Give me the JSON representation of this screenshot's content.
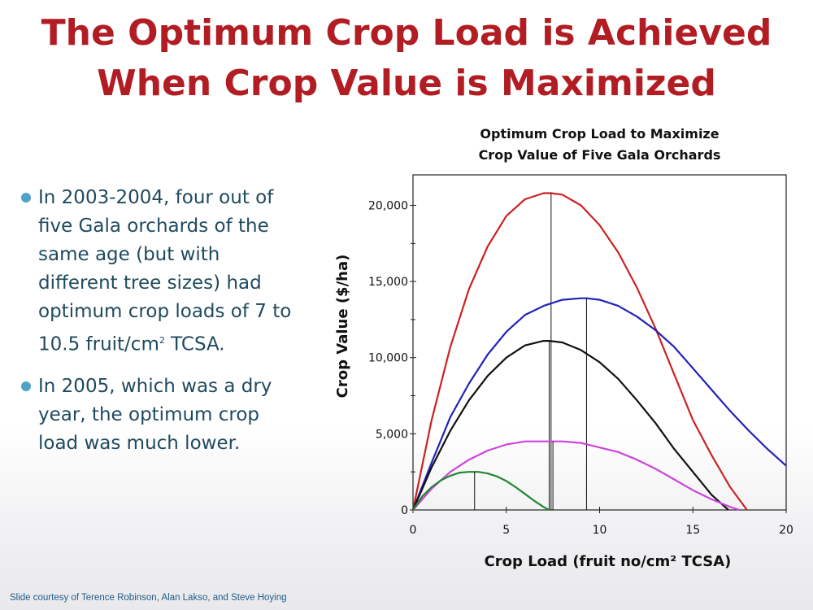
{
  "title": {
    "line1": "The Optimum Crop Load is Achieved",
    "line2": "When Crop Value is Maximized"
  },
  "bullets": [
    {
      "text_before": "In 2003-2004, four out of five Gala orchards of the same age (but with different tree sizes) had optimum crop loads of 7 to 10.5 fruit/cm",
      "superscript": "2",
      "text_after": " TCSA."
    },
    {
      "text_before": "In 2005, which was a dry year, the optimum crop load was much lower.",
      "superscript": "",
      "text_after": ""
    }
  ],
  "credit": "Slide courtesy of Terence Robinson, Alan Lakso, and Steve Hoying",
  "chart_data": {
    "type": "line",
    "title_lines": [
      "Optimum Crop Load to Maximize",
      "Crop Value of Five Gala Orchards"
    ],
    "xlabel": "Crop Load (fruit no/cm² TCSA)",
    "ylabel": "Crop Value ($/ha)",
    "xlim": [
      0,
      20
    ],
    "ylim": [
      0,
      22000
    ],
    "xticks": [
      0,
      5,
      10,
      15,
      20
    ],
    "xtick_labels": [
      "0",
      "5",
      "10",
      "15",
      "20"
    ],
    "yticks": [
      0,
      5000,
      10000,
      15000,
      20000
    ],
    "ytick_labels": [
      "0",
      "5,000",
      "10,000",
      "15,000",
      "20,000"
    ],
    "grid": false,
    "series": [
      {
        "color": "#cc2222",
        "x": [
          0,
          1,
          2,
          3,
          4,
          5,
          6,
          7,
          7.4,
          8,
          9,
          10,
          11,
          12,
          13,
          14,
          15,
          16,
          17,
          17.9
        ],
        "y": [
          0,
          5900,
          10700,
          14500,
          17300,
          19300,
          20400,
          20800,
          20800,
          20700,
          20000,
          18700,
          16900,
          14600,
          11900,
          8900,
          5900,
          3600,
          1500,
          0
        ],
        "optimum_x": 7.4
      },
      {
        "color": "#2222bb",
        "x": [
          0,
          1,
          2,
          3,
          4,
          5,
          6,
          7,
          8,
          9,
          9.3,
          10,
          11,
          12,
          13,
          14,
          15,
          16,
          17,
          18,
          19,
          20
        ],
        "y": [
          0,
          3100,
          6100,
          8300,
          10200,
          11700,
          12800,
          13400,
          13800,
          13900,
          13900,
          13800,
          13400,
          12700,
          11800,
          10700,
          9300,
          7900,
          6500,
          5200,
          4000,
          2900
        ],
        "optimum_x": 9.3
      },
      {
        "color": "#111111",
        "x": [
          0,
          1,
          2,
          3,
          4,
          5,
          6,
          7,
          7.3,
          8,
          9,
          10,
          11,
          12,
          13,
          14,
          15,
          16,
          16.9
        ],
        "y": [
          0,
          2800,
          5200,
          7200,
          8800,
          10000,
          10800,
          11100,
          11100,
          11000,
          10500,
          9700,
          8600,
          7200,
          5700,
          4000,
          2500,
          1000,
          0
        ],
        "optimum_x": 7.3
      },
      {
        "color": "#cc44dd",
        "x": [
          0,
          1,
          2,
          3,
          4,
          5,
          6,
          7,
          7.5,
          8,
          9,
          10,
          11,
          12,
          13,
          14,
          15,
          16,
          17,
          17.5
        ],
        "y": [
          0,
          1400,
          2500,
          3300,
          3900,
          4300,
          4500,
          4500,
          4500,
          4500,
          4400,
          4100,
          3800,
          3300,
          2700,
          2000,
          1300,
          700,
          200,
          0
        ],
        "optimum_x": 7.5
      },
      {
        "color": "#22882e",
        "x": [
          0,
          0.5,
          1,
          1.5,
          2,
          2.5,
          3,
          3.5,
          4,
          4.5,
          5,
          5.5,
          6,
          6.5,
          7,
          7.3
        ],
        "y": [
          0,
          900,
          1500,
          1950,
          2250,
          2450,
          2500,
          2500,
          2400,
          2200,
          1900,
          1500,
          1050,
          600,
          200,
          0
        ],
        "optimum_x": 3.3
      }
    ]
  }
}
